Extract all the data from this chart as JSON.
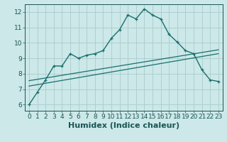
{
  "xlabel": "Humidex (Indice chaleur)",
  "bg_color": "#cce8e8",
  "grid_color": "#aacccc",
  "line_color": "#1a6e6e",
  "xlim": [
    -0.5,
    23.5
  ],
  "ylim": [
    5.6,
    12.5
  ],
  "xticks": [
    0,
    1,
    2,
    3,
    4,
    5,
    6,
    7,
    8,
    9,
    10,
    11,
    12,
    13,
    14,
    15,
    16,
    17,
    18,
    19,
    20,
    21,
    22,
    23
  ],
  "yticks": [
    6,
    7,
    8,
    9,
    10,
    11,
    12
  ],
  "curve1_x": [
    0,
    1,
    2,
    3,
    4,
    5,
    6,
    7,
    8,
    9,
    10,
    11,
    12,
    13,
    14,
    15,
    16,
    17,
    18,
    19,
    20,
    21,
    22,
    23
  ],
  "curve1_y": [
    6.0,
    6.8,
    7.6,
    8.5,
    8.5,
    9.3,
    9.0,
    9.2,
    9.3,
    9.5,
    10.3,
    10.85,
    11.8,
    11.55,
    12.2,
    11.8,
    11.55,
    10.55,
    10.05,
    9.5,
    9.3,
    8.25,
    7.6,
    7.5
  ],
  "line2_x": [
    0,
    23
  ],
  "line2_y": [
    7.55,
    9.55
  ],
  "line3_x": [
    0,
    23
  ],
  "line3_y": [
    7.2,
    9.3
  ],
  "font_color": "#1a5555",
  "tick_fontsize": 6.5,
  "label_fontsize": 8
}
